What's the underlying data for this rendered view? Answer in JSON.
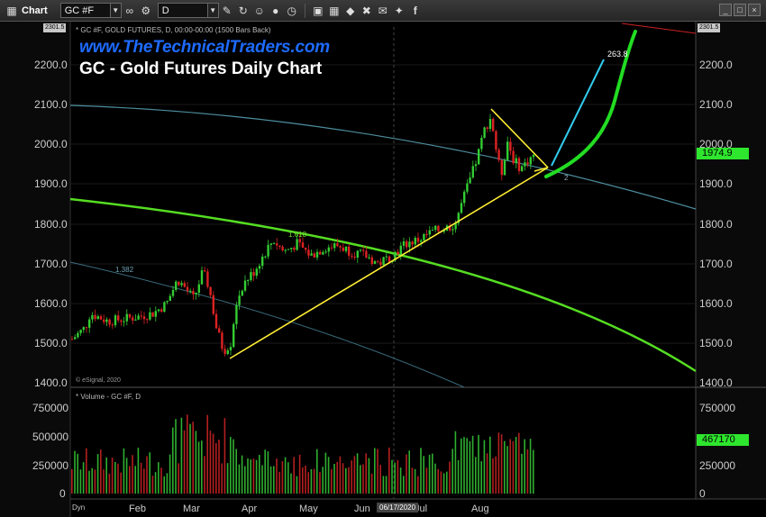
{
  "toolbar": {
    "chart_label": "Chart",
    "symbol_value": "GC #F",
    "interval_value": "D",
    "icons": [
      "chart-icon",
      "link-icon",
      "settings-gear-icon",
      "pencil-icon",
      "cycle-icon",
      "smile-icon",
      "user-icon",
      "clock-icon",
      "save-icon",
      "grid-icon",
      "lock-icon",
      "delete-icon",
      "chat-icon",
      "twitter-icon",
      "facebook-icon"
    ]
  },
  "window_controls": [
    "minimize",
    "restore",
    "close"
  ],
  "price_pane": {
    "header": "* GC #F, GOLD FUTURES, D, 00:00-00:00 (1500 Bars Back)",
    "brand": "www.TheTechnicalTraders.com",
    "title": "GC - Gold Futures Daily Chart",
    "copyright": "© eSignal, 2020",
    "top_left_tag": "2301.5",
    "top_right_tag": "2301.5",
    "price_labels": [
      "2200.0",
      "2100.0",
      "2000.0",
      "1900.0",
      "1800.0",
      "1700.0",
      "1600.0",
      "1500.0",
      "1400.0"
    ],
    "last_price": "1974.9",
    "fib_1618": "1.618",
    "fib_1382": "1.382",
    "target_label": "263.8",
    "pattern_label": "2",
    "colors": {
      "triangle": "#ffee33",
      "arrow_projection": "#33ccee",
      "green_arc": "#55dd22",
      "price_projection": "#22dd22",
      "teal_arc": "#4e8fa0",
      "up_candle": "#33cc33",
      "down_candle": "#dd2222"
    }
  },
  "volume_pane": {
    "header": "* Volume - GC #F, D",
    "labels": [
      "750000",
      "500000",
      "250000",
      "0"
    ],
    "last_volume": "467170"
  },
  "time_axis": {
    "dyn": "Dyn",
    "months": [
      "Feb",
      "Mar",
      "Apr",
      "May",
      "Jun",
      "Jul",
      "Aug"
    ],
    "cursor_date": "06/17/2020"
  }
}
